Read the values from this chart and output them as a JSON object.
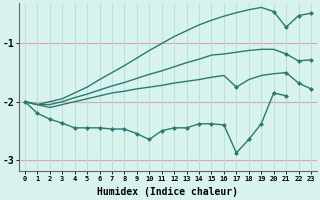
{
  "xlabel": "Humidex (Indice chaleur)",
  "x": [
    0,
    1,
    2,
    3,
    4,
    5,
    6,
    7,
    8,
    9,
    10,
    11,
    12,
    13,
    14,
    15,
    16,
    17,
    18,
    19,
    20,
    21,
    22,
    23
  ],
  "line1_y": [
    -2.0,
    -2.05,
    -2.0,
    -1.95,
    -1.85,
    -1.75,
    -1.62,
    -1.5,
    -1.38,
    -1.25,
    -1.12,
    -1.0,
    -0.88,
    -0.78,
    -0.68,
    -0.6,
    -0.53,
    -0.47,
    -0.42,
    -0.38,
    -0.45,
    -0.72,
    -0.52,
    -0.48
  ],
  "line2_y": [
    -2.0,
    -2.05,
    -2.05,
    -2.0,
    -1.93,
    -1.87,
    -1.8,
    -1.73,
    -1.67,
    -1.6,
    -1.53,
    -1.47,
    -1.4,
    -1.33,
    -1.27,
    -1.2,
    -1.18,
    -1.15,
    -1.12,
    -1.1,
    -1.1,
    -1.18,
    -1.3,
    -1.28
  ],
  "line3_y": [
    -2.0,
    -2.05,
    -2.1,
    -2.05,
    -2.0,
    -1.95,
    -1.9,
    -1.85,
    -1.82,
    -1.78,
    -1.75,
    -1.72,
    -1.68,
    -1.65,
    -1.62,
    -1.58,
    -1.55,
    -1.75,
    -1.62,
    -1.55,
    -1.52,
    -1.5,
    -1.68,
    -1.78
  ],
  "line4_y": [
    -2.0,
    -2.2,
    -2.3,
    -2.37,
    -2.45,
    -2.45,
    -2.45,
    -2.47,
    -2.47,
    -2.55,
    -2.65,
    -2.5,
    -2.45,
    -2.45,
    -2.38,
    -2.38,
    -2.4,
    -2.88,
    -2.65,
    -2.38,
    -1.85,
    -1.9,
    null,
    null
  ],
  "color": "#2a7a72",
  "bg_color": "#d8f2ee",
  "hgrid_color": "#d8a8a8",
  "vgrid_color": "#bce0dc",
  "ylim": [
    -3.2,
    -0.3
  ],
  "yticks": [
    -3,
    -2,
    -1
  ],
  "xlim": [
    -0.5,
    23.5
  ],
  "line1_markevery": [
    20,
    21,
    22,
    23
  ],
  "line2_markevery": [
    21,
    22,
    23
  ],
  "line3_markevery": [
    17,
    21,
    22,
    23
  ],
  "xtick_labels": [
    "0",
    "1",
    "2",
    "3",
    "4",
    "5",
    "6",
    "7",
    "8",
    "9",
    "10",
    "11",
    "12",
    "13",
    "14",
    "15",
    "16",
    "17",
    "18",
    "19",
    "20",
    "21",
    "22",
    "23"
  ]
}
